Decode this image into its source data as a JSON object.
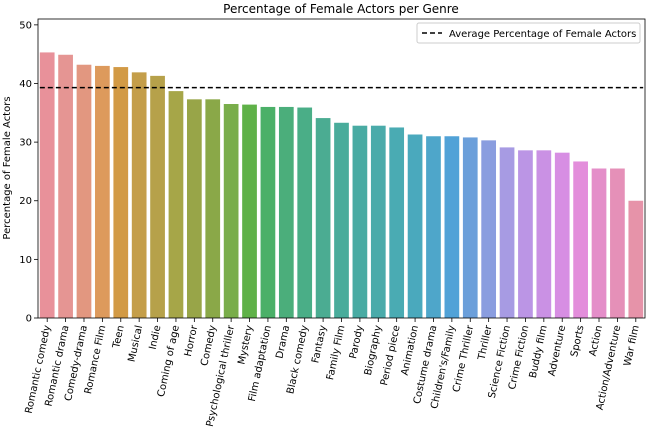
{
  "chart_data": {
    "type": "bar",
    "title": "Percentage of Female Actors per Genre",
    "xlabel": "",
    "ylabel": "Percentage of Female Actors",
    "ylim": [
      0,
      51
    ],
    "yticks": [
      0,
      10,
      20,
      30,
      40,
      50
    ],
    "grid": false,
    "legend_position": "top-right",
    "categories": [
      "Romantic comedy",
      "Romantic drama",
      "Comedy-drama",
      "Romance Film",
      "Teen",
      "Musical",
      "Indie",
      "Coming of age",
      "Horror",
      "Comedy",
      "Psychological thriller",
      "Mystery",
      "Film adaptation",
      "Drama",
      "Black comedy",
      "Fantasy",
      "Family Film",
      "Parody",
      "Biography",
      "Period piece",
      "Animation",
      "Costume drama",
      "Children's/Family",
      "Crime Thriller",
      "Thriller",
      "Science Fiction",
      "Crime Fiction",
      "Buddy film",
      "Adventure",
      "Sports",
      "Action",
      "Action/Adventure",
      "War film"
    ],
    "values": [
      45.3,
      44.9,
      43.2,
      43.0,
      42.8,
      41.9,
      41.3,
      38.7,
      37.3,
      37.3,
      36.5,
      36.4,
      36.0,
      36.0,
      35.9,
      34.1,
      33.3,
      32.8,
      32.8,
      32.5,
      31.3,
      31.0,
      31.0,
      30.8,
      30.3,
      29.1,
      28.6,
      28.6,
      28.2,
      26.7,
      25.5,
      25.5,
      20.0
    ],
    "colors": [
      "#e8919a",
      "#e59593",
      "#e29780",
      "#dd9a5c",
      "#d29a45",
      "#c49e4a",
      "#b6a14a",
      "#a6a648",
      "#98a548",
      "#8aa848",
      "#79ad4a",
      "#5fb148",
      "#4bb068",
      "#4bae7b",
      "#4aae87",
      "#4bac92",
      "#49ac9b",
      "#49aba3",
      "#4aabaa",
      "#4aabb3",
      "#4aa9bd",
      "#4ea6ca",
      "#51a2d7",
      "#6b9fda",
      "#8a9ddf",
      "#a79be3",
      "#bb95e5",
      "#ca91e4",
      "#d78ee3",
      "#e38edb",
      "#e48ec9",
      "#e590b8",
      "#e693a9"
    ],
    "average": 39.3,
    "legend": [
      "Average Percentage of Female Actors"
    ]
  }
}
